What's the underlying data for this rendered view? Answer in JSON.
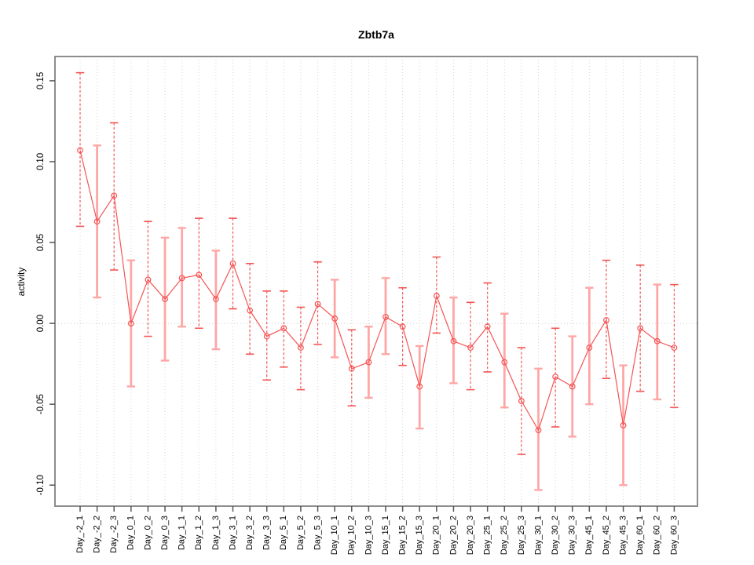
{
  "chart_data": {
    "type": "scatter",
    "title": "Zbtb7a",
    "xlabel": "",
    "ylabel": "activity",
    "ylim": [
      -0.113,
      0.165
    ],
    "yticks": [
      -0.1,
      -0.05,
      0.0,
      0.05,
      0.1,
      0.15
    ],
    "ytick_labels": [
      "-0.10",
      "-0.05",
      "0.00",
      "0.05",
      "0.10",
      "0.15"
    ],
    "grid": "vertical dotted gridline at every category, dotted horizontal reference line at y=0",
    "legend_position": "none",
    "point_marker": "open-circle",
    "colors": {
      "series": "#f55454",
      "error_bar_solid": "#ffa6a6",
      "gridline": "#d4d4d4",
      "zero_line": "#cccccc",
      "axis_box": "#808080",
      "tick": "#555555",
      "text": "#000000"
    },
    "categories": [
      "Day_-2_1",
      "Day_-2_2",
      "Day_-2_3",
      "Day_0_1",
      "Day_0_2",
      "Day_0_3",
      "Day_1_1",
      "Day_1_2",
      "Day_1_3",
      "Day_3_1",
      "Day_3_2",
      "Day_3_3",
      "Day_5_1",
      "Day_5_2",
      "Day_5_3",
      "Day_10_1",
      "Day_10_2",
      "Day_10_3",
      "Day_15_1",
      "Day_15_2",
      "Day_15_3",
      "Day_20_1",
      "Day_20_2",
      "Day_20_3",
      "Day_25_1",
      "Day_25_2",
      "Day_25_3",
      "Day_30_1",
      "Day_30_2",
      "Day_30_3",
      "Day_45_1",
      "Day_45_2",
      "Day_45_3",
      "Day_60_1",
      "Day_60_2",
      "Day_60_3"
    ],
    "series": [
      {
        "name": "activity",
        "values": [
          0.107,
          0.063,
          0.079,
          0.0,
          0.027,
          0.015,
          0.028,
          0.03,
          0.015,
          0.037,
          0.008,
          -0.008,
          -0.003,
          -0.015,
          0.012,
          0.003,
          -0.028,
          -0.024,
          0.004,
          -0.002,
          -0.039,
          0.017,
          -0.011,
          -0.015,
          -0.002,
          -0.024,
          -0.048,
          -0.066,
          -0.033,
          -0.039,
          -0.015,
          0.002,
          -0.063,
          -0.003,
          -0.011,
          -0.015
        ],
        "ci_low": [
          0.06,
          0.016,
          0.033,
          -0.039,
          -0.008,
          -0.023,
          -0.002,
          -0.003,
          -0.016,
          0.009,
          -0.019,
          -0.035,
          -0.027,
          -0.041,
          -0.013,
          -0.021,
          -0.051,
          -0.046,
          -0.019,
          -0.026,
          -0.065,
          -0.006,
          -0.037,
          -0.041,
          -0.03,
          -0.052,
          -0.081,
          -0.103,
          -0.064,
          -0.07,
          -0.05,
          -0.034,
          -0.1,
          -0.042,
          -0.047,
          -0.052
        ],
        "ci_high": [
          0.155,
          0.11,
          0.124,
          0.039,
          0.063,
          0.053,
          0.059,
          0.065,
          0.045,
          0.065,
          0.037,
          0.02,
          0.02,
          0.01,
          0.038,
          0.027,
          -0.004,
          -0.002,
          0.028,
          0.022,
          -0.014,
          0.041,
          0.016,
          0.013,
          0.025,
          0.006,
          -0.015,
          -0.028,
          -0.003,
          -0.008,
          0.022,
          0.039,
          -0.026,
          0.036,
          0.024,
          0.024
        ],
        "error_bar_styles": [
          "dashed",
          "solid",
          "dashed",
          "solid",
          "dashed",
          "solid",
          "solid",
          "dashed",
          "solid",
          "dashed",
          "dashed",
          "dashed",
          "dashed",
          "dashed",
          "dashed",
          "solid",
          "dashed",
          "solid",
          "solid",
          "dashed",
          "solid",
          "dashed",
          "solid",
          "dashed",
          "dashed",
          "solid",
          "dashed",
          "solid",
          "dashed",
          "solid",
          "solid",
          "dashed",
          "solid",
          "dashed",
          "solid",
          "dashed"
        ]
      }
    ]
  }
}
